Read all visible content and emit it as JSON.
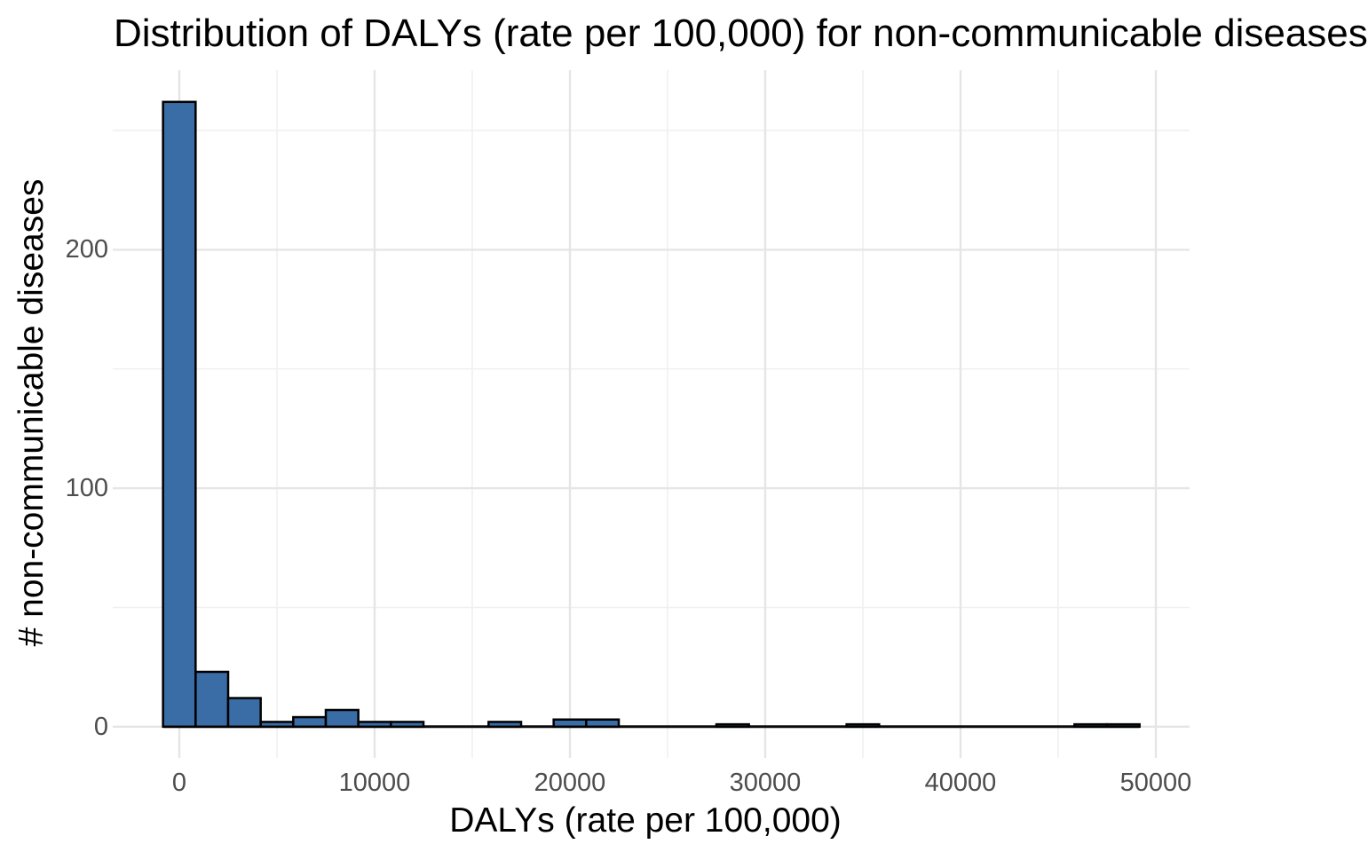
{
  "title": "Distribution of DALYs (rate per 100,000) for non-communicable diseases",
  "chart_data": {
    "type": "bar",
    "subtype": "histogram",
    "title": "Distribution of DALYs (rate per 100,000) for non-communicable diseases",
    "xlabel": "DALYs (rate per 100,000)",
    "ylabel": "# non-communicable diseases",
    "x_ticks": [
      0,
      10000,
      20000,
      30000,
      40000,
      50000
    ],
    "x_minor_ticks": [
      5000,
      15000,
      25000,
      35000,
      45000
    ],
    "y_ticks": [
      0,
      100,
      200
    ],
    "y_minor_ticks": [
      50,
      150,
      250
    ],
    "xlim": [
      -3400,
      51800
    ],
    "ylim": [
      -13,
      276
    ],
    "binwidth": 1667,
    "bins": [
      {
        "center": 0,
        "count": 262
      },
      {
        "center": 1667,
        "count": 23
      },
      {
        "center": 3333,
        "count": 12
      },
      {
        "center": 5000,
        "count": 2
      },
      {
        "center": 6667,
        "count": 4
      },
      {
        "center": 8333,
        "count": 7
      },
      {
        "center": 10000,
        "count": 2
      },
      {
        "center": 11667,
        "count": 2
      },
      {
        "center": 16667,
        "count": 2
      },
      {
        "center": 20000,
        "count": 3
      },
      {
        "center": 21667,
        "count": 3
      },
      {
        "center": 28333,
        "count": 1
      },
      {
        "center": 35000,
        "count": 1
      },
      {
        "center": 46667,
        "count": 1
      },
      {
        "center": 48333,
        "count": 1
      }
    ],
    "zero_count_bins_span": [
      -833,
      49167
    ],
    "grid": true,
    "legend": "none",
    "colors": {
      "bar_fill": "#3a6ca6",
      "bar_stroke": "#000000",
      "grid_major": "#e5e5e5",
      "grid_minor": "#f0f0f0",
      "tick_label": "#4d4d4d",
      "text": "#000000",
      "background": "#ffffff"
    }
  }
}
